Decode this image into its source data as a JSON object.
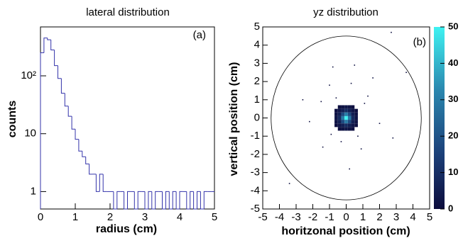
{
  "chart_data": [
    {
      "type": "histogram",
      "title": "lateral distribution",
      "annotation": "(a)",
      "xlabel": "radius (cm)",
      "ylabel": "counts",
      "color": "#3333aa",
      "log_y": true,
      "bins": [
        0,
        0.1,
        0.2,
        0.3,
        0.4,
        0.5,
        0.6,
        0.7,
        0.8,
        0.9,
        1.0,
        1.1,
        1.2,
        1.3,
        1.4,
        1.5,
        1.6,
        1.7,
        1.8,
        1.9,
        2.0,
        2.1,
        2.2,
        2.3,
        2.4,
        2.5,
        2.6,
        2.7,
        2.8,
        2.9,
        3.0,
        3.1,
        3.2,
        3.3,
        3.4,
        3.5,
        3.6,
        3.7,
        3.8,
        3.9,
        4.0,
        4.1,
        4.2,
        4.3,
        4.4,
        4.5,
        4.6,
        4.7,
        4.8,
        4.9,
        5.0
      ],
      "counts": [
        250,
        450,
        420,
        280,
        150,
        90,
        50,
        30,
        20,
        12,
        8,
        5,
        4,
        3,
        2,
        2,
        1,
        2,
        1,
        1,
        1,
        0,
        1,
        1,
        0,
        1,
        1,
        0,
        1,
        1,
        0,
        1,
        0,
        1,
        1,
        0,
        1,
        0,
        1,
        0,
        1,
        1,
        0,
        1,
        0,
        1,
        0,
        1,
        1,
        1
      ],
      "xlim": [
        0,
        5
      ],
      "xticks": [
        0,
        1,
        2,
        3,
        4,
        5
      ],
      "ylim": [
        0.5,
        700
      ],
      "yticks": [
        1,
        10,
        {
          "value": 100,
          "label": "10²"
        }
      ]
    },
    {
      "type": "heatmap",
      "title": "yz distribution",
      "annotation": "(b)",
      "xlabel": "horitzonal position (cm)",
      "ylabel": "vertical position (cm)",
      "cell_x": [
        -0.6,
        -0.4,
        -0.2,
        0,
        0.2,
        0.4,
        0.6
      ],
      "cell_y": [
        0.6,
        0.4,
        0.2,
        0,
        -0.2,
        -0.4,
        -0.6
      ],
      "z": [
        [
          0,
          1,
          2,
          3,
          2,
          1,
          0
        ],
        [
          1,
          3,
          6,
          9,
          6,
          3,
          1
        ],
        [
          2,
          6,
          18,
          30,
          18,
          6,
          2
        ],
        [
          3,
          9,
          30,
          50,
          30,
          9,
          3
        ],
        [
          2,
          6,
          18,
          30,
          18,
          6,
          2
        ],
        [
          1,
          3,
          6,
          9,
          6,
          3,
          1
        ],
        [
          0,
          1,
          2,
          3,
          2,
          1,
          0
        ]
      ],
      "points_x": [
        2.7,
        -0.8,
        0.3,
        1.6,
        -1.4,
        0.9,
        0.2,
        2.8,
        -2.6,
        3.6,
        -3.4,
        -1.0,
        1.3,
        -1.5,
        2.0,
        -2.2,
        0.5,
        -0.3,
        1.1,
        -0.9,
        0.7,
        -0.6
      ],
      "points_y": [
        4.7,
        2.8,
        1.9,
        2.2,
        -1.6,
        -1.7,
        -2.8,
        -1.1,
        1.0,
        2.5,
        -3.6,
        1.8,
        1.2,
        0.9,
        -0.3,
        -0.2,
        2.9,
        -1.3,
        0.8,
        -0.9,
        -1.0,
        1.1
      ],
      "circle_radius": 4.5,
      "xlim": [
        -5,
        5
      ],
      "xticks": [
        -5,
        -4,
        -3,
        -2,
        -1,
        0,
        1,
        2,
        3,
        4,
        5
      ],
      "ylim": [
        -5,
        5
      ],
      "yticks": [
        -5,
        -4,
        -3,
        -2,
        -1,
        0,
        1,
        2,
        3,
        4,
        5
      ],
      "zlim": [
        0,
        50
      ],
      "zticks": [
        0,
        10,
        20,
        30,
        40,
        50
      ]
    }
  ]
}
